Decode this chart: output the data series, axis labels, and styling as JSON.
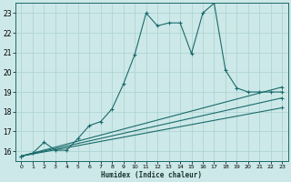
{
  "xlabel": "Humidex (Indice chaleur)",
  "bg_color": "#cde8e8",
  "line_color": "#1a6b6b",
  "grid_color": "#aed4d4",
  "xlim": [
    -0.5,
    23.5
  ],
  "ylim": [
    15.5,
    23.5
  ],
  "yticks": [
    16,
    17,
    18,
    19,
    20,
    21,
    22,
    23
  ],
  "xticks": [
    0,
    1,
    2,
    3,
    4,
    5,
    6,
    7,
    8,
    9,
    10,
    11,
    12,
    13,
    14,
    15,
    16,
    17,
    18,
    19,
    20,
    21,
    22,
    23
  ],
  "main_x": [
    0,
    1,
    2,
    3,
    4,
    5,
    6,
    7,
    8,
    9,
    10,
    11,
    12,
    13,
    14,
    15,
    16,
    17,
    18,
    19,
    20,
    21,
    22,
    23
  ],
  "main_y": [
    15.75,
    15.9,
    16.45,
    16.05,
    16.05,
    16.65,
    17.3,
    17.5,
    18.15,
    19.4,
    20.9,
    23.0,
    22.35,
    22.5,
    22.5,
    20.95,
    23.0,
    23.5,
    20.1,
    19.2,
    19.0,
    19.0,
    19.0,
    19.0
  ],
  "line2_x": [
    0,
    23
  ],
  "line2_y": [
    15.75,
    19.25
  ],
  "line3_x": [
    0,
    23
  ],
  "line3_y": [
    15.75,
    18.7
  ],
  "line4_x": [
    0,
    23
  ],
  "line4_y": [
    15.75,
    18.2
  ]
}
